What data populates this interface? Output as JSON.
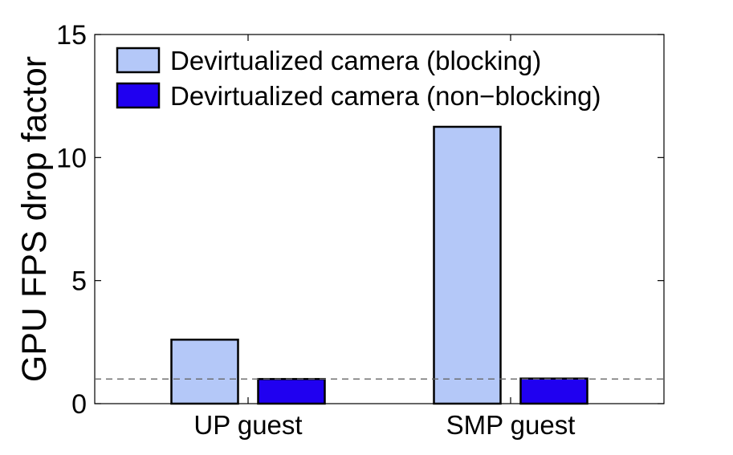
{
  "chart_data": {
    "type": "bar",
    "categories": [
      "UP guest",
      "SMP guest"
    ],
    "series": [
      {
        "name": "Devirtualized camera (blocking)",
        "values": [
          2.6,
          11.25
        ],
        "color": "#b4c8f8"
      },
      {
        "name": "Devirtualized camera (non−blocking)",
        "values": [
          1.0,
          1.02
        ],
        "color": "#2000f0"
      }
    ],
    "title": "",
    "xlabel": "",
    "ylabel": "GPU FPS drop factor",
    "ylim": [
      0,
      15
    ],
    "yticks": [
      0,
      5,
      10,
      15
    ],
    "reference_line": {
      "y": 1,
      "style": "dashed",
      "color": "#666666"
    },
    "grid": false,
    "legend_position": "top-left"
  }
}
